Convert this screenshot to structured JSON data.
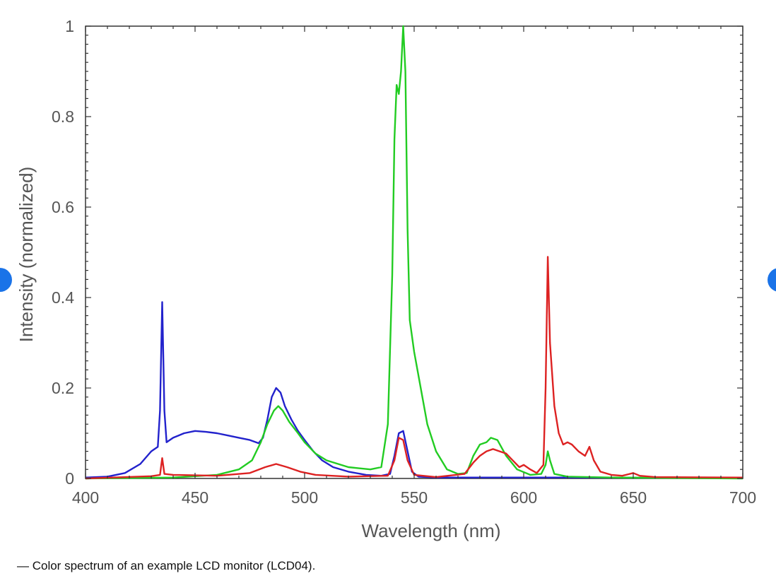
{
  "caption": "— Color spectrum of an example LCD monitor (LCD04).",
  "nav": {
    "prev_icon": "chevron-left-icon",
    "next_icon": "chevron-right-icon",
    "color": "#1a73e8"
  },
  "chart_data": {
    "type": "line",
    "title": "",
    "xlabel": "Wavelength (nm)",
    "ylabel": "Intensity (normalized)",
    "xlim": [
      400,
      700
    ],
    "ylim": [
      0,
      1
    ],
    "x_ticks": [
      "400",
      "450",
      "500",
      "550",
      "600",
      "650",
      "700"
    ],
    "y_ticks": [
      "0",
      "0.2",
      "0.4",
      "0.6",
      "0.8",
      "1"
    ],
    "grid": false,
    "legend": "none",
    "series": [
      {
        "color": "#2222cc",
        "points": [
          [
            400,
            0.002
          ],
          [
            410,
            0.004
          ],
          [
            418,
            0.012
          ],
          [
            425,
            0.032
          ],
          [
            430,
            0.06
          ],
          [
            433,
            0.07
          ],
          [
            434,
            0.15
          ],
          [
            435,
            0.39
          ],
          [
            436,
            0.15
          ],
          [
            437,
            0.08
          ],
          [
            440,
            0.09
          ],
          [
            445,
            0.1
          ],
          [
            450,
            0.105
          ],
          [
            455,
            0.103
          ],
          [
            460,
            0.1
          ],
          [
            465,
            0.095
          ],
          [
            470,
            0.09
          ],
          [
            475,
            0.085
          ],
          [
            479,
            0.078
          ],
          [
            481,
            0.09
          ],
          [
            483,
            0.13
          ],
          [
            485,
            0.18
          ],
          [
            487,
            0.2
          ],
          [
            489,
            0.19
          ],
          [
            491,
            0.16
          ],
          [
            494,
            0.13
          ],
          [
            497,
            0.105
          ],
          [
            500,
            0.085
          ],
          [
            504,
            0.06
          ],
          [
            508,
            0.04
          ],
          [
            513,
            0.025
          ],
          [
            520,
            0.015
          ],
          [
            528,
            0.008
          ],
          [
            535,
            0.006
          ],
          [
            539,
            0.01
          ],
          [
            541,
            0.05
          ],
          [
            543,
            0.1
          ],
          [
            545,
            0.105
          ],
          [
            547,
            0.06
          ],
          [
            549,
            0.015
          ],
          [
            552,
            0.004
          ],
          [
            560,
            0.002
          ],
          [
            580,
            0.002
          ],
          [
            620,
            0.002
          ],
          [
            700,
            0.001
          ]
        ]
      },
      {
        "color": "#22cc22",
        "points": [
          [
            400,
            0.0
          ],
          [
            440,
            0.002
          ],
          [
            460,
            0.008
          ],
          [
            470,
            0.02
          ],
          [
            476,
            0.04
          ],
          [
            480,
            0.08
          ],
          [
            483,
            0.12
          ],
          [
            486,
            0.15
          ],
          [
            488,
            0.16
          ],
          [
            490,
            0.15
          ],
          [
            493,
            0.125
          ],
          [
            497,
            0.1
          ],
          [
            500,
            0.08
          ],
          [
            505,
            0.055
          ],
          [
            510,
            0.04
          ],
          [
            520,
            0.025
          ],
          [
            530,
            0.02
          ],
          [
            535,
            0.025
          ],
          [
            538,
            0.12
          ],
          [
            540,
            0.45
          ],
          [
            541,
            0.75
          ],
          [
            542,
            0.87
          ],
          [
            543,
            0.85
          ],
          [
            544,
            0.9
          ],
          [
            545,
            1.0
          ],
          [
            546,
            0.9
          ],
          [
            547,
            0.55
          ],
          [
            548,
            0.35
          ],
          [
            550,
            0.28
          ],
          [
            553,
            0.2
          ],
          [
            556,
            0.12
          ],
          [
            560,
            0.06
          ],
          [
            565,
            0.02
          ],
          [
            570,
            0.01
          ],
          [
            574,
            0.012
          ],
          [
            577,
            0.05
          ],
          [
            580,
            0.075
          ],
          [
            583,
            0.08
          ],
          [
            585,
            0.09
          ],
          [
            588,
            0.085
          ],
          [
            592,
            0.05
          ],
          [
            597,
            0.02
          ],
          [
            603,
            0.008
          ],
          [
            608,
            0.01
          ],
          [
            610,
            0.03
          ],
          [
            611,
            0.06
          ],
          [
            612,
            0.04
          ],
          [
            614,
            0.01
          ],
          [
            620,
            0.004
          ],
          [
            640,
            0.002
          ],
          [
            700,
            0.0
          ]
        ]
      },
      {
        "color": "#dd2222",
        "points": [
          [
            400,
            0.0
          ],
          [
            430,
            0.005
          ],
          [
            434,
            0.008
          ],
          [
            435,
            0.045
          ],
          [
            436,
            0.01
          ],
          [
            440,
            0.008
          ],
          [
            460,
            0.006
          ],
          [
            475,
            0.012
          ],
          [
            482,
            0.025
          ],
          [
            487,
            0.032
          ],
          [
            492,
            0.025
          ],
          [
            498,
            0.015
          ],
          [
            505,
            0.008
          ],
          [
            520,
            0.004
          ],
          [
            538,
            0.006
          ],
          [
            541,
            0.04
          ],
          [
            543,
            0.09
          ],
          [
            545,
            0.085
          ],
          [
            547,
            0.04
          ],
          [
            550,
            0.008
          ],
          [
            560,
            0.003
          ],
          [
            573,
            0.01
          ],
          [
            577,
            0.035
          ],
          [
            580,
            0.05
          ],
          [
            583,
            0.06
          ],
          [
            586,
            0.065
          ],
          [
            589,
            0.06
          ],
          [
            592,
            0.055
          ],
          [
            595,
            0.04
          ],
          [
            598,
            0.025
          ],
          [
            600,
            0.03
          ],
          [
            603,
            0.02
          ],
          [
            606,
            0.012
          ],
          [
            609,
            0.03
          ],
          [
            610,
            0.2
          ],
          [
            611,
            0.49
          ],
          [
            612,
            0.3
          ],
          [
            614,
            0.16
          ],
          [
            616,
            0.1
          ],
          [
            618,
            0.075
          ],
          [
            620,
            0.08
          ],
          [
            622,
            0.075
          ],
          [
            625,
            0.06
          ],
          [
            628,
            0.05
          ],
          [
            630,
            0.07
          ],
          [
            632,
            0.04
          ],
          [
            635,
            0.015
          ],
          [
            640,
            0.008
          ],
          [
            645,
            0.006
          ],
          [
            650,
            0.012
          ],
          [
            653,
            0.006
          ],
          [
            660,
            0.003
          ],
          [
            700,
            0.002
          ]
        ]
      }
    ]
  }
}
